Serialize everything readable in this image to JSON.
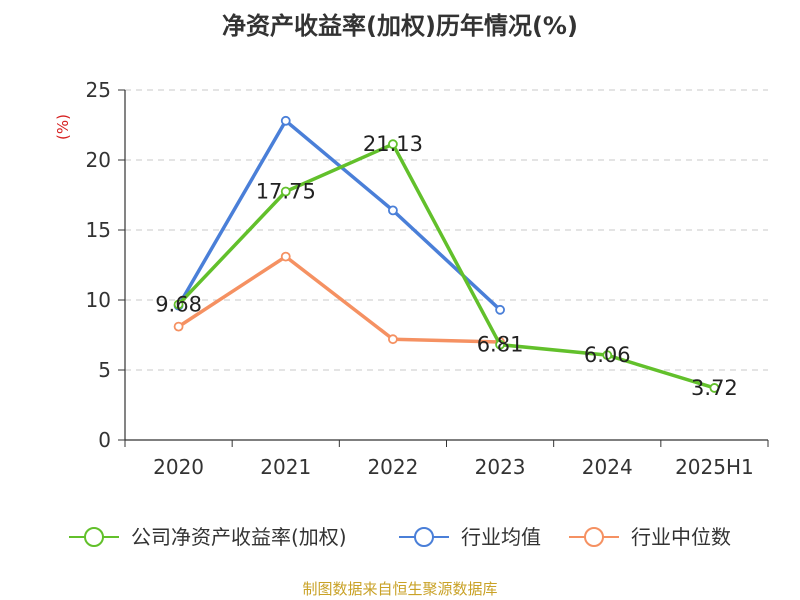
{
  "chart_data": {
    "type": "line",
    "title": "净资产收益率(加权)历年情况(%)",
    "ylabel": "(%)",
    "ylim": [
      0,
      25
    ],
    "yticks": [
      0,
      5,
      10,
      15,
      20,
      25
    ],
    "grid": "horizontal-dashed",
    "legend_position": "bottom",
    "categories": [
      "2020",
      "2021",
      "2022",
      "2023",
      "2024",
      "2025H1"
    ],
    "series": [
      {
        "name": "公司净资产收益率(加权)",
        "color": "#62c02b",
        "values": [
          9.68,
          17.75,
          21.13,
          6.81,
          6.06,
          3.72
        ],
        "labels": [
          "9.68",
          "17.75",
          "21.13",
          "6.81",
          "6.06",
          "3.72"
        ]
      },
      {
        "name": "行业均值",
        "color": "#4a7fd8",
        "values": [
          9.6,
          22.8,
          16.4,
          9.3,
          null,
          null
        ]
      },
      {
        "name": "行业中位数",
        "color": "#f59162",
        "values": [
          8.1,
          13.1,
          7.2,
          7.0,
          null,
          null
        ]
      }
    ]
  },
  "footer": {
    "source": "制图数据来自恒生聚源数据库"
  }
}
